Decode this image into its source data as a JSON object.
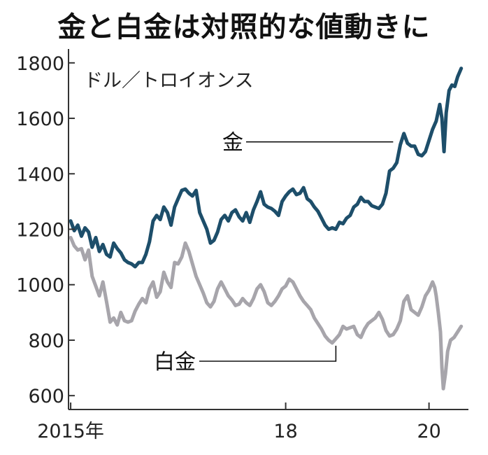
{
  "chart_data": {
    "type": "line",
    "title": "金と白金は対照的な値動きに",
    "ylabel": "ドル／トロイオンス",
    "xlabel": "",
    "ylim": [
      550,
      1850
    ],
    "xlim": [
      2014.97,
      2020.55
    ],
    "y_ticks": [
      600,
      800,
      1000,
      1200,
      1400,
      1600,
      1800
    ],
    "x_ticks": [
      {
        "value": 2015.0,
        "label": "2015年"
      },
      {
        "value": 2018.0,
        "label": "18"
      },
      {
        "value": 2020.0,
        "label": "20"
      }
    ],
    "grid": false,
    "colors": {
      "gold": "#1d4e6a",
      "platinum": "#a7a5ab",
      "axis": "#333333"
    },
    "series": [
      {
        "name": "金",
        "key": "gold",
        "label_anchor": {
          "x": 2019.5,
          "y": 1515
        },
        "points": [
          [
            2015.0,
            1230
          ],
          [
            2015.05,
            1195
          ],
          [
            2015.1,
            1215
          ],
          [
            2015.15,
            1175
          ],
          [
            2015.2,
            1205
          ],
          [
            2015.25,
            1190
          ],
          [
            2015.3,
            1135
          ],
          [
            2015.35,
            1170
          ],
          [
            2015.4,
            1120
          ],
          [
            2015.45,
            1145
          ],
          [
            2015.5,
            1110
          ],
          [
            2015.55,
            1100
          ],
          [
            2015.6,
            1150
          ],
          [
            2015.65,
            1130
          ],
          [
            2015.7,
            1115
          ],
          [
            2015.75,
            1090
          ],
          [
            2015.8,
            1080
          ],
          [
            2015.85,
            1075
          ],
          [
            2015.9,
            1065
          ],
          [
            2015.95,
            1080
          ],
          [
            2016.0,
            1080
          ],
          [
            2016.05,
            1110
          ],
          [
            2016.1,
            1155
          ],
          [
            2016.15,
            1230
          ],
          [
            2016.2,
            1250
          ],
          [
            2016.25,
            1235
          ],
          [
            2016.3,
            1280
          ],
          [
            2016.35,
            1260
          ],
          [
            2016.4,
            1215
          ],
          [
            2016.45,
            1280
          ],
          [
            2016.5,
            1310
          ],
          [
            2016.55,
            1340
          ],
          [
            2016.6,
            1345
          ],
          [
            2016.65,
            1330
          ],
          [
            2016.7,
            1320
          ],
          [
            2016.75,
            1340
          ],
          [
            2016.8,
            1260
          ],
          [
            2016.85,
            1230
          ],
          [
            2016.9,
            1200
          ],
          [
            2016.95,
            1150
          ],
          [
            2017.0,
            1160
          ],
          [
            2017.05,
            1190
          ],
          [
            2017.1,
            1235
          ],
          [
            2017.15,
            1250
          ],
          [
            2017.2,
            1230
          ],
          [
            2017.25,
            1260
          ],
          [
            2017.3,
            1270
          ],
          [
            2017.35,
            1245
          ],
          [
            2017.4,
            1230
          ],
          [
            2017.45,
            1260
          ],
          [
            2017.5,
            1225
          ],
          [
            2017.55,
            1270
          ],
          [
            2017.6,
            1300
          ],
          [
            2017.65,
            1335
          ],
          [
            2017.7,
            1290
          ],
          [
            2017.75,
            1280
          ],
          [
            2017.8,
            1275
          ],
          [
            2017.85,
            1265
          ],
          [
            2017.9,
            1250
          ],
          [
            2017.95,
            1300
          ],
          [
            2018.0,
            1320
          ],
          [
            2018.05,
            1335
          ],
          [
            2018.1,
            1345
          ],
          [
            2018.15,
            1325
          ],
          [
            2018.2,
            1330
          ],
          [
            2018.25,
            1350
          ],
          [
            2018.3,
            1310
          ],
          [
            2018.35,
            1300
          ],
          [
            2018.4,
            1280
          ],
          [
            2018.45,
            1265
          ],
          [
            2018.5,
            1240
          ],
          [
            2018.55,
            1215
          ],
          [
            2018.6,
            1200
          ],
          [
            2018.65,
            1205
          ],
          [
            2018.7,
            1200
          ],
          [
            2018.75,
            1225
          ],
          [
            2018.8,
            1220
          ],
          [
            2018.85,
            1240
          ],
          [
            2018.9,
            1250
          ],
          [
            2018.95,
            1280
          ],
          [
            2019.0,
            1290
          ],
          [
            2019.05,
            1315
          ],
          [
            2019.1,
            1300
          ],
          [
            2019.15,
            1300
          ],
          [
            2019.2,
            1285
          ],
          [
            2019.25,
            1280
          ],
          [
            2019.3,
            1275
          ],
          [
            2019.35,
            1290
          ],
          [
            2019.4,
            1330
          ],
          [
            2019.45,
            1410
          ],
          [
            2019.5,
            1420
          ],
          [
            2019.55,
            1440
          ],
          [
            2019.6,
            1505
          ],
          [
            2019.65,
            1545
          ],
          [
            2019.7,
            1510
          ],
          [
            2019.75,
            1500
          ],
          [
            2019.8,
            1500
          ],
          [
            2019.85,
            1470
          ],
          [
            2019.9,
            1465
          ],
          [
            2019.95,
            1480
          ],
          [
            2020.0,
            1520
          ],
          [
            2020.05,
            1560
          ],
          [
            2020.1,
            1590
          ],
          [
            2020.15,
            1650
          ],
          [
            2020.18,
            1600
          ],
          [
            2020.21,
            1480
          ],
          [
            2020.24,
            1620
          ],
          [
            2020.28,
            1700
          ],
          [
            2020.32,
            1720
          ],
          [
            2020.36,
            1715
          ],
          [
            2020.4,
            1750
          ],
          [
            2020.45,
            1780
          ]
        ]
      },
      {
        "name": "白金",
        "key": "platinum",
        "label_anchor": {
          "x": 2018.7,
          "y": 780
        },
        "points": [
          [
            2015.0,
            1170
          ],
          [
            2015.05,
            1140
          ],
          [
            2015.1,
            1125
          ],
          [
            2015.15,
            1130
          ],
          [
            2015.2,
            1090
          ],
          [
            2015.25,
            1125
          ],
          [
            2015.3,
            1030
          ],
          [
            2015.35,
            995
          ],
          [
            2015.4,
            960
          ],
          [
            2015.45,
            1010
          ],
          [
            2015.5,
            940
          ],
          [
            2015.55,
            865
          ],
          [
            2015.6,
            880
          ],
          [
            2015.65,
            855
          ],
          [
            2015.7,
            900
          ],
          [
            2015.75,
            870
          ],
          [
            2015.8,
            865
          ],
          [
            2015.85,
            870
          ],
          [
            2015.9,
            905
          ],
          [
            2015.95,
            930
          ],
          [
            2016.0,
            950
          ],
          [
            2016.05,
            935
          ],
          [
            2016.1,
            985
          ],
          [
            2016.15,
            1010
          ],
          [
            2016.2,
            955
          ],
          [
            2016.25,
            975
          ],
          [
            2016.3,
            1045
          ],
          [
            2016.35,
            1010
          ],
          [
            2016.4,
            990
          ],
          [
            2016.45,
            1080
          ],
          [
            2016.5,
            1075
          ],
          [
            2016.55,
            1100
          ],
          [
            2016.6,
            1150
          ],
          [
            2016.65,
            1120
          ],
          [
            2016.7,
            1075
          ],
          [
            2016.75,
            1030
          ],
          [
            2016.8,
            1000
          ],
          [
            2016.85,
            970
          ],
          [
            2016.9,
            935
          ],
          [
            2016.95,
            920
          ],
          [
            2017.0,
            940
          ],
          [
            2017.05,
            985
          ],
          [
            2017.1,
            1010
          ],
          [
            2017.15,
            985
          ],
          [
            2017.2,
            960
          ],
          [
            2017.25,
            945
          ],
          [
            2017.3,
            925
          ],
          [
            2017.35,
            930
          ],
          [
            2017.4,
            950
          ],
          [
            2017.45,
            935
          ],
          [
            2017.5,
            925
          ],
          [
            2017.55,
            950
          ],
          [
            2017.6,
            985
          ],
          [
            2017.65,
            1000
          ],
          [
            2017.7,
            975
          ],
          [
            2017.75,
            935
          ],
          [
            2017.8,
            925
          ],
          [
            2017.85,
            940
          ],
          [
            2017.9,
            960
          ],
          [
            2017.95,
            985
          ],
          [
            2018.0,
            995
          ],
          [
            2018.05,
            1020
          ],
          [
            2018.1,
            1010
          ],
          [
            2018.15,
            985
          ],
          [
            2018.2,
            960
          ],
          [
            2018.25,
            940
          ],
          [
            2018.3,
            925
          ],
          [
            2018.35,
            910
          ],
          [
            2018.4,
            880
          ],
          [
            2018.45,
            860
          ],
          [
            2018.5,
            840
          ],
          [
            2018.55,
            815
          ],
          [
            2018.6,
            800
          ],
          [
            2018.65,
            790
          ],
          [
            2018.7,
            805
          ],
          [
            2018.75,
            820
          ],
          [
            2018.8,
            850
          ],
          [
            2018.85,
            840
          ],
          [
            2018.9,
            845
          ],
          [
            2018.95,
            850
          ],
          [
            2019.0,
            820
          ],
          [
            2019.05,
            810
          ],
          [
            2019.1,
            840
          ],
          [
            2019.15,
            860
          ],
          [
            2019.2,
            870
          ],
          [
            2019.25,
            880
          ],
          [
            2019.3,
            900
          ],
          [
            2019.35,
            875
          ],
          [
            2019.4,
            835
          ],
          [
            2019.45,
            815
          ],
          [
            2019.5,
            820
          ],
          [
            2019.55,
            840
          ],
          [
            2019.6,
            870
          ],
          [
            2019.65,
            940
          ],
          [
            2019.7,
            960
          ],
          [
            2019.75,
            910
          ],
          [
            2019.8,
            900
          ],
          [
            2019.85,
            890
          ],
          [
            2019.9,
            920
          ],
          [
            2019.95,
            960
          ],
          [
            2020.0,
            980
          ],
          [
            2020.05,
            1010
          ],
          [
            2020.08,
            990
          ],
          [
            2020.1,
            960
          ],
          [
            2020.13,
            900
          ],
          [
            2020.16,
            830
          ],
          [
            2020.18,
            700
          ],
          [
            2020.2,
            625
          ],
          [
            2020.23,
            680
          ],
          [
            2020.26,
            760
          ],
          [
            2020.3,
            800
          ],
          [
            2020.35,
            810
          ],
          [
            2020.4,
            830
          ],
          [
            2020.45,
            850
          ]
        ]
      }
    ]
  }
}
